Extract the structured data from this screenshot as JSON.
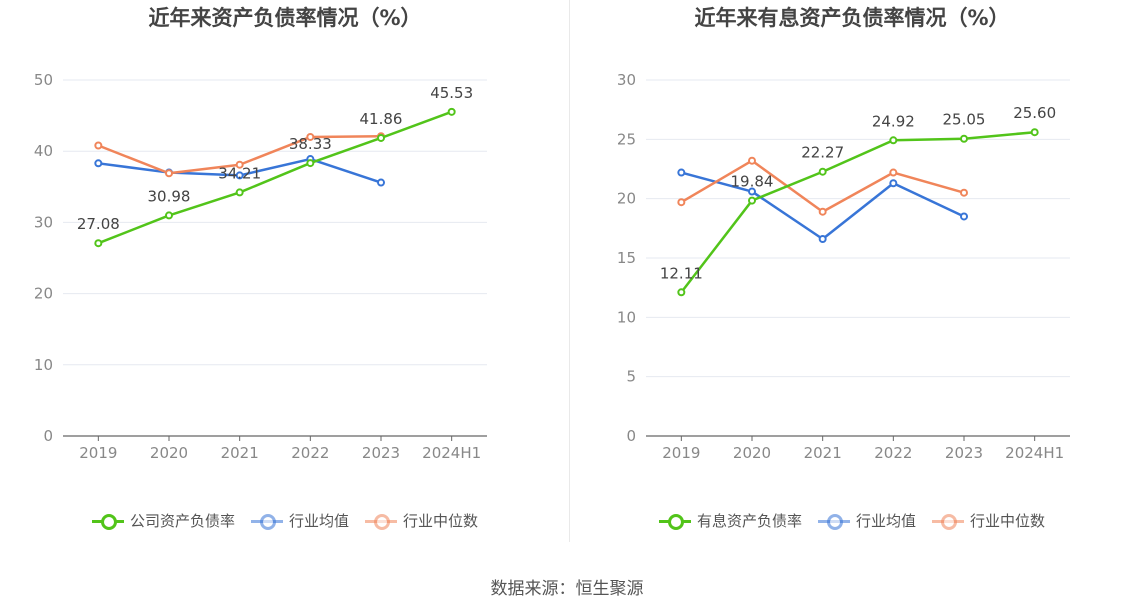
{
  "footer": {
    "source": "数据来源：恒生聚源"
  },
  "chart_data": [
    {
      "type": "line",
      "title": "近年来资产负债率情况（%）",
      "categories": [
        "2019",
        "2020",
        "2021",
        "2022",
        "2023",
        "2024H1"
      ],
      "ylim": [
        0,
        50
      ],
      "yticks": [
        0,
        10,
        20,
        30,
        40,
        50
      ],
      "series": [
        {
          "name": "公司资产负债率",
          "color": "#52c41a",
          "values": [
            27.08,
            30.98,
            34.21,
            38.33,
            41.86,
            45.53
          ],
          "labels": true
        },
        {
          "name": "行业均值",
          "color": "#3875d7",
          "values": [
            38.3,
            37.0,
            36.6,
            38.9,
            35.6,
            null
          ],
          "labels": false
        },
        {
          "name": "行业中位数",
          "color": "#f0855a",
          "values": [
            40.8,
            36.9,
            38.1,
            42.0,
            42.1,
            null
          ],
          "labels": false
        }
      ]
    },
    {
      "type": "line",
      "title": "近年来有息资产负债率情况（%）",
      "categories": [
        "2019",
        "2020",
        "2021",
        "2022",
        "2023",
        "2024H1"
      ],
      "ylim": [
        0,
        30
      ],
      "yticks": [
        0,
        5,
        10,
        15,
        20,
        25,
        30
      ],
      "series": [
        {
          "name": "有息资产负债率",
          "color": "#52c41a",
          "values": [
            12.11,
            19.84,
            22.27,
            24.92,
            25.05,
            25.6
          ],
          "labels": true
        },
        {
          "name": "行业均值",
          "color": "#3875d7",
          "values": [
            22.2,
            20.6,
            16.6,
            21.3,
            18.5,
            null
          ],
          "labels": false
        },
        {
          "name": "行业中位数",
          "color": "#f0855a",
          "values": [
            19.7,
            23.2,
            18.9,
            22.2,
            20.5,
            null
          ],
          "labels": false
        }
      ]
    }
  ]
}
